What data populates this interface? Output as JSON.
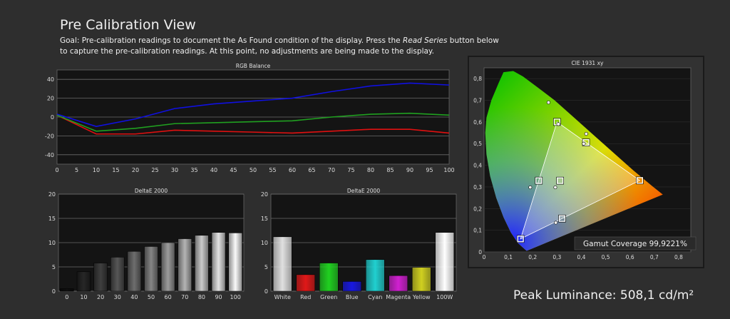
{
  "header": {
    "title": "Pre Calibration View",
    "goal_prefix": "Goal: Pre-calibration readings to document the As Found condition of the display. Press the ",
    "goal_emphasis": "Read Series",
    "goal_suffix": " button below to capture the pre-calibration readings. At this point, no adjustments are being made to the display."
  },
  "peak_luminance": "Peak Luminance: 508,1 cd/m²",
  "colors": {
    "background": "#2e2e2e",
    "plot_bg": "#141414",
    "red": "#e01010",
    "green": "#20a020",
    "blue": "#1010e0"
  },
  "chart_data": [
    {
      "type": "line",
      "title": "RGB Balance",
      "x": [
        0,
        10,
        20,
        30,
        40,
        50,
        60,
        70,
        80,
        90,
        100
      ],
      "xticks": [
        0,
        5,
        10,
        15,
        20,
        25,
        30,
        35,
        40,
        45,
        50,
        55,
        60,
        65,
        70,
        75,
        80,
        85,
        90,
        95,
        100
      ],
      "yticks": [
        40,
        20,
        0,
        -20,
        -40
      ],
      "ylim": [
        -50,
        50
      ],
      "grid": true,
      "series": [
        {
          "color": "#e01010",
          "values": [
            2,
            -18,
            -18,
            -14,
            -15,
            -16,
            -17,
            -15,
            -13,
            -13,
            -17
          ]
        },
        {
          "color": "#20a020",
          "values": [
            2,
            -15,
            -12,
            -7,
            -6,
            -5,
            -4,
            0,
            3,
            4,
            2
          ]
        },
        {
          "color": "#1010e0",
          "values": [
            3,
            -10,
            -2,
            9,
            14,
            17,
            20,
            27,
            33,
            36,
            34
          ]
        }
      ]
    },
    {
      "type": "bar",
      "title": "DeltaE 2000",
      "categories": [
        "0",
        "10",
        "20",
        "30",
        "40",
        "50",
        "60",
        "70",
        "80",
        "90",
        "100"
      ],
      "values": [
        0.5,
        4.0,
        5.8,
        7.0,
        8.2,
        9.2,
        10.0,
        10.8,
        11.5,
        12.1,
        12.0
      ],
      "yticks": [
        20,
        15,
        10,
        5,
        0
      ],
      "ylim": [
        0,
        20
      ]
    },
    {
      "type": "bar",
      "title": "DeltaE 2000",
      "categories": [
        "White",
        "Red",
        "Green",
        "Blue",
        "Cyan",
        "Magenta",
        "Yellow",
        "100W"
      ],
      "values": [
        11.2,
        3.4,
        5.8,
        2.0,
        6.5,
        3.2,
        4.9,
        12.1
      ],
      "colors": [
        "#e0e0e0",
        "#e01818",
        "#20d020",
        "#1818e0",
        "#20d0d0",
        "#d020d0",
        "#d0d020",
        "#ffffff"
      ],
      "yticks": [
        20,
        15,
        10,
        5,
        0
      ],
      "ylim": [
        0,
        20
      ]
    },
    {
      "type": "scatter",
      "title": "CIE 1931 xy",
      "xticks": [
        "0",
        "0,1",
        "0,2",
        "0,3",
        "0,4",
        "0,5",
        "0,6",
        "0,7",
        "0,8"
      ],
      "yticks": [
        "0,8",
        "0,7",
        "0,6",
        "0,5",
        "0,4",
        "0,3",
        "0,2",
        "0,1",
        "0"
      ],
      "xlim": [
        0,
        0.85
      ],
      "ylim": [
        0,
        0.85
      ],
      "targets": [
        [
          0.64,
          0.33
        ],
        [
          0.3,
          0.6
        ],
        [
          0.15,
          0.06
        ],
        [
          0.3127,
          0.329
        ],
        [
          0.225,
          0.329
        ],
        [
          0.4193,
          0.5053
        ],
        [
          0.3209,
          0.1542
        ]
      ],
      "measured": [
        [
          0.265,
          0.69
        ],
        [
          0.42,
          0.545
        ],
        [
          0.19,
          0.298
        ],
        [
          0.293,
          0.298
        ],
        [
          0.295,
          0.135
        ],
        [
          0.305,
          0.59
        ],
        [
          0.41,
          0.5
        ]
      ],
      "gamut_label": "Gamut Coverage 99,9221%"
    }
  ]
}
